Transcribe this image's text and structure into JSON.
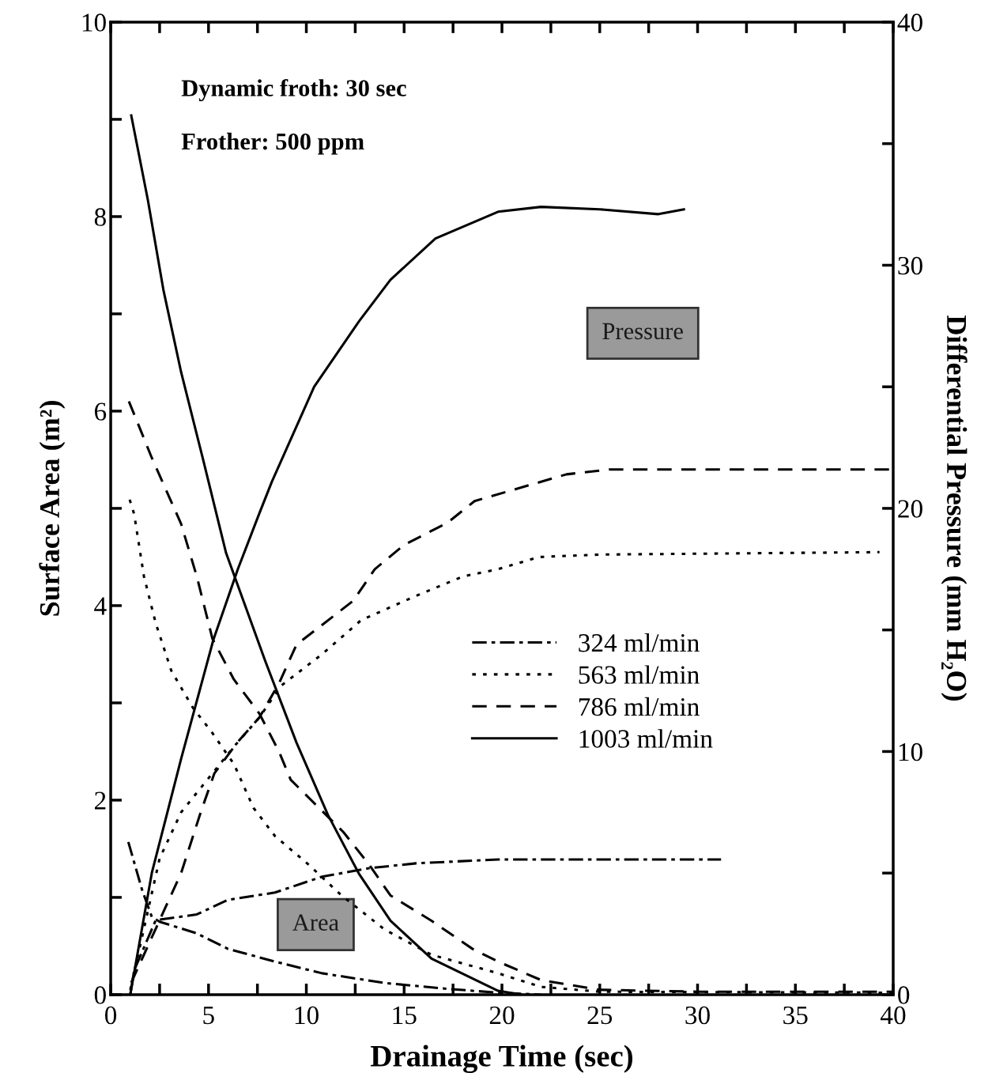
{
  "chart_data": {
    "type": "line",
    "xlabel": "Drainage Time (sec)",
    "ylabel": "Surface Area (m²)",
    "y2label": "Differential Pressure (mm H₂O)",
    "annotations": [
      "Dynamic froth: 30 sec",
      "Frother: 500 ppm",
      "Pressure",
      "Area"
    ],
    "xlim": [
      0,
      40
    ],
    "xticks": [
      0,
      {
        "value": 2.5,
        "label": null
      },
      5,
      {
        "value": 7.5,
        "label": null
      },
      10,
      {
        "value": 12.5,
        "label": null
      },
      15,
      {
        "value": 17.5,
        "label": null
      },
      20,
      {
        "value": 22.5,
        "label": null
      },
      25,
      {
        "value": 27.5,
        "label": null
      },
      30,
      {
        "value": 32.5,
        "label": null
      },
      35,
      {
        "value": 37.5,
        "label": null
      },
      40
    ],
    "ylim": [
      0,
      10
    ],
    "yticks": [
      0,
      {
        "value": 1,
        "label": null
      },
      2,
      {
        "value": 3,
        "label": null
      },
      4,
      {
        "value": 5,
        "label": null
      },
      6,
      {
        "value": 7,
        "label": null
      },
      8,
      {
        "value": 9,
        "label": null
      },
      10
    ],
    "y2lim": [
      0,
      40
    ],
    "y2ticks": [
      0,
      {
        "value": 5,
        "label": null
      },
      10,
      {
        "value": 15,
        "label": null
      },
      20,
      {
        "value": 25,
        "label": null
      },
      30,
      {
        "value": 35,
        "label": null
      },
      40
    ],
    "grid": false,
    "legend": "center right",
    "marker": "none",
    "series": [
      {
        "name": "324 ml/min",
        "color": "#000000",
        "line_style": "dashdot",
        "x": [
          0.9,
          1.6,
          2.1,
          2.5,
          4.4,
          6.0,
          8.4,
          10.8,
          14.0,
          17.2,
          19.8,
          22
        ],
        "values": [
          1.57,
          1.08,
          0.8,
          0.75,
          0.63,
          0.47,
          0.34,
          0.22,
          0.12,
          0.06,
          0.02,
          0
        ]
      },
      {
        "name": "563 ml/min",
        "color": "#000000",
        "line_style": "dotted",
        "x": [
          0.97,
          1.2,
          1.7,
          2.3,
          3.1,
          4.2,
          5.2,
          6.3,
          7.3,
          8.4,
          10.1,
          11.8,
          14.0,
          16.4,
          19.8,
          22,
          25,
          40
        ],
        "values": [
          5.09,
          4.94,
          4.3,
          3.82,
          3.33,
          2.95,
          2.69,
          2.37,
          1.92,
          1.63,
          1.34,
          1.02,
          0.67,
          0.41,
          0.22,
          0.08,
          0.03,
          0.02
        ]
      },
      {
        "name": "786 ml/min",
        "color": "#000000",
        "line_style": "dashed",
        "x": [
          0.93,
          2.1,
          3.6,
          4.4,
          5.2,
          6.3,
          7.6,
          8.6,
          9.2,
          10.8,
          11.9,
          13.2,
          14.3,
          16.4,
          18.5,
          19.8,
          22,
          25,
          30,
          40
        ],
        "values": [
          6.1,
          5.52,
          4.84,
          4.3,
          3.66,
          3.24,
          2.89,
          2.5,
          2.21,
          1.89,
          1.67,
          1.34,
          1.02,
          0.76,
          0.47,
          0.34,
          0.15,
          0.05,
          0.03,
          0.03
        ]
      },
      {
        "name": "1003 ml/min",
        "color": "#000000",
        "line_style": "solid",
        "x": [
          1.05,
          1.9,
          2.7,
          3.6,
          4.7,
          5.9,
          7.9,
          9.5,
          11.1,
          12.7,
          14.3,
          16.4,
          19.8,
          21
        ],
        "values": [
          9.04,
          8.17,
          7.24,
          6.4,
          5.52,
          4.54,
          3.43,
          2.59,
          1.85,
          1.24,
          0.76,
          0.37,
          0.04,
          0
        ]
      },
      {
        "axis": "y2",
        "color": "#000000",
        "line_style": "dashdot",
        "x": [
          1.0,
          1.2,
          2.3,
          4.4,
          6.0,
          8.4,
          10.8,
          13.2,
          15.6,
          19.8,
          31.2
        ],
        "values": [
          0,
          1.0,
          3.06,
          3.3,
          3.9,
          4.2,
          4.85,
          5.2,
          5.4,
          5.56,
          5.56
        ]
      },
      {
        "axis": "y2",
        "color": "#000000",
        "line_style": "dotted",
        "x": [
          1.0,
          2.5,
          3.6,
          5.2,
          6.3,
          7.6,
          8.7,
          10.8,
          12.8,
          15.6,
          18.0,
          19.8,
          21.9,
          25,
          39.3
        ],
        "values": [
          0.2,
          5.6,
          7.5,
          9.1,
          10.2,
          11.4,
          12.7,
          14.0,
          15.4,
          16.4,
          17.2,
          17.5,
          18.0,
          18.1,
          18.2
        ]
      },
      {
        "axis": "y2",
        "color": "#000000",
        "line_style": "dashed",
        "x": [
          1.05,
          2.5,
          3.6,
          4.6,
          5.3,
          6.5,
          7.6,
          8.6,
          9.5,
          10.8,
          12.4,
          13.5,
          15.0,
          17.2,
          18.6,
          23.3,
          25.5,
          40
        ],
        "values": [
          0.5,
          3.06,
          5.0,
          7.5,
          9.1,
          10.4,
          11.4,
          12.8,
          14.4,
          15.2,
          16.2,
          17.5,
          18.5,
          19.4,
          20.3,
          21.4,
          21.6,
          21.6
        ]
      },
      {
        "axis": "y2",
        "color": "#000000",
        "line_style": "solid",
        "x": [
          1.0,
          2.1,
          3.6,
          5.25,
          6.5,
          7.6,
          8.24,
          10.4,
          12.7,
          14.3,
          16.6,
          19.8,
          22,
          25,
          28,
          29.3
        ],
        "values": [
          0,
          5.0,
          9.7,
          14.6,
          17.5,
          19.8,
          21.1,
          25.0,
          27.7,
          29.4,
          31.1,
          32.2,
          32.4,
          32.3,
          32.1,
          32.3
        ]
      }
    ]
  }
}
